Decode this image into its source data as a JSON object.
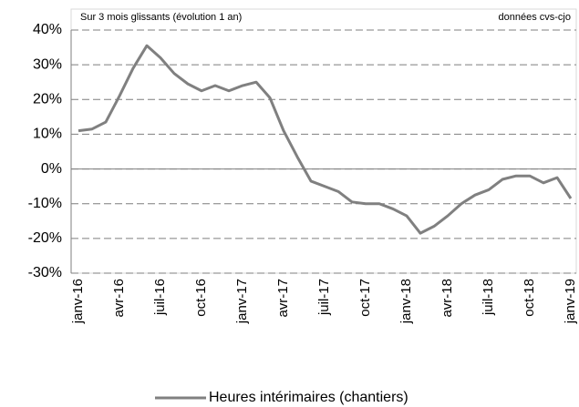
{
  "chart_data": {
    "type": "line",
    "annotations": [
      "Sur 3 mois glissants (évolution 1 an)",
      "données cvs-cjo"
    ],
    "categories": [
      "janv-16",
      null,
      null,
      "avr-16",
      null,
      null,
      "juil-16",
      null,
      null,
      "oct-16",
      null,
      null,
      "janv-17",
      null,
      null,
      "avr-17",
      null,
      null,
      "juil-17",
      null,
      null,
      "oct-17",
      null,
      null,
      "janv-18",
      null,
      null,
      "avr-18",
      null,
      null,
      "juil-18",
      null,
      null,
      "oct-18",
      null,
      null,
      "janv-19"
    ],
    "series": [
      {
        "name": "Heures intérimaires (chantiers)",
        "color": "#808080",
        "values": [
          11,
          11.5,
          13.5,
          21,
          29,
          35.5,
          32,
          27.5,
          24.5,
          22.5,
          24,
          22.5,
          24,
          25,
          20.5,
          11,
          3.5,
          -3.5,
          -5,
          -6.5,
          -9.5,
          -10,
          -10,
          -11.5,
          -13.5,
          -18.5,
          -16.5,
          -13.5,
          -10,
          -7.5,
          -6,
          -3,
          -2,
          -2,
          -4,
          -2.5,
          -8.5
        ]
      }
    ],
    "ylim": [
      -30,
      40
    ],
    "yticks": [
      {
        "value": -30,
        "label": "-30%"
      },
      {
        "value": -20,
        "label": "-20%"
      },
      {
        "value": -10,
        "label": "-10%"
      },
      {
        "value": 0,
        "label": "0%"
      },
      {
        "value": 10,
        "label": "10%"
      },
      {
        "value": 20,
        "label": "20%"
      },
      {
        "value": 30,
        "label": "30%"
      },
      {
        "value": 40,
        "label": "40%"
      }
    ],
    "grid": true,
    "legend": "bottom"
  }
}
